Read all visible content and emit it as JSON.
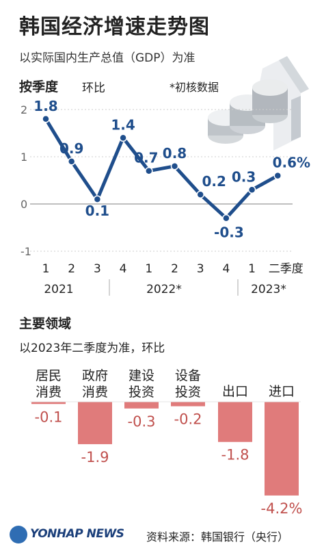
{
  "header": {
    "title": "韩国经济增速走势图",
    "subtitle": "以实际国内生产总值（GDP）为准"
  },
  "section1": {
    "label": "按季度",
    "sublabel": "环比",
    "note": "*初核数据",
    "icon": "gdp-arrow-icon"
  },
  "section2": {
    "label": "主要领域",
    "sublabel": "以2023年二季度为准，环比"
  },
  "chart_data": [
    {
      "type": "line",
      "x": [
        "1",
        "2",
        "3",
        "4",
        "1",
        "2",
        "3",
        "4",
        "1",
        "二季度"
      ],
      "years": [
        "2021",
        "2022*",
        "2023*"
      ],
      "values": [
        1.8,
        0.9,
        0.1,
        1.4,
        0.7,
        0.8,
        0.2,
        -0.3,
        0.3,
        0.6
      ],
      "value_labels": [
        "1.8",
        "0.9",
        "0.1",
        "1.4",
        "0.7",
        "0.8",
        "0.2",
        "-0.3",
        "0.3",
        "0.6%"
      ],
      "yticks": [
        "2",
        "1",
        "0",
        "-1"
      ],
      "ylim": [
        -1,
        2
      ],
      "color": "#1f4e8c",
      "grid": "horizontal dotted"
    },
    {
      "type": "bar",
      "categories": [
        [
          "居民",
          "消费"
        ],
        [
          "政府",
          "消费"
        ],
        [
          "建设",
          "投资"
        ],
        [
          "设备",
          "投资"
        ],
        [
          "出口"
        ],
        [
          "进口"
        ]
      ],
      "values": [
        -0.1,
        -1.9,
        -0.3,
        -0.2,
        -1.8,
        -4.2
      ],
      "value_labels": [
        "-0.1",
        "-1.9",
        "-0.3",
        "-0.2",
        "-1.8",
        "-4.2%"
      ],
      "color": "#e07b7b",
      "label_color": "#c0504d"
    }
  ],
  "footer": {
    "logo": "YONHAP NEWS",
    "source": "资料来源：韩国银行（央行）"
  }
}
